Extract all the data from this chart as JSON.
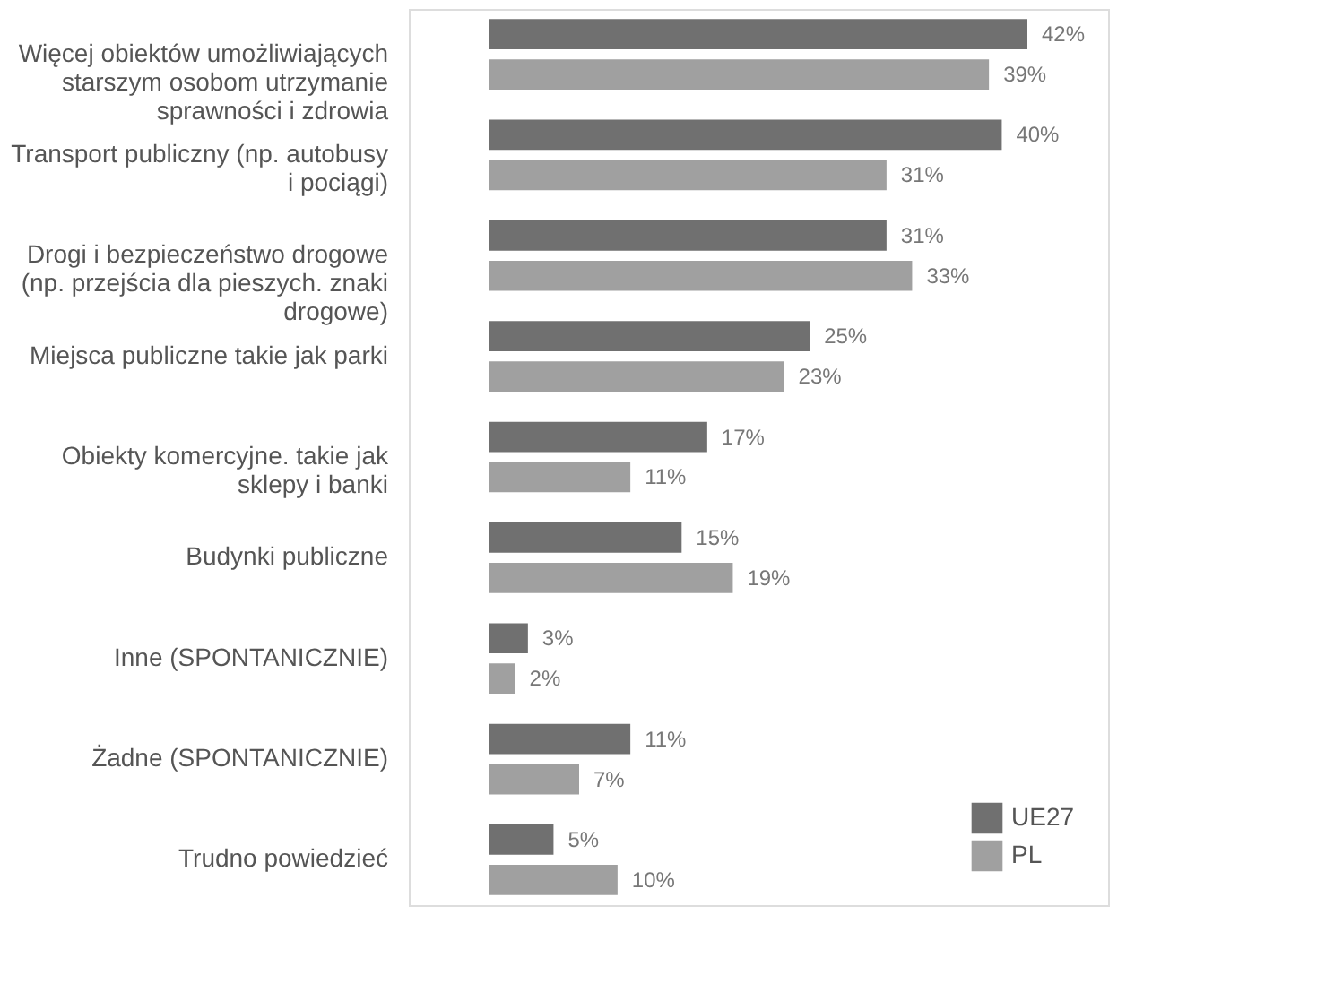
{
  "chart_data": {
    "type": "bar",
    "orientation": "horizontal",
    "legend": "bottom right",
    "grid": false,
    "categories": [
      "Więcej obiektów umożliwiających starszym osobom utrzymanie sprawności i zdrowia",
      "Transport publiczny (np. autobusy i pociągi)",
      "Drogi i bezpieczeństwo drogowe (np. przejścia dla pieszych. znaki drogowe)",
      "Miejsca publiczne takie jak parki",
      "Obiekty komercyjne. takie jak sklepy i banki",
      "Budynki publiczne",
      "Inne (SPONTANICZNIE)",
      "Żadne (SPONTANICZNIE)",
      "Trudno powiedzieć"
    ],
    "series": [
      {
        "name": "UE27",
        "color": "#707070",
        "values": [
          42,
          40,
          31,
          25,
          17,
          15,
          3,
          11,
          5
        ],
        "value_labels": [
          "42%",
          "40%",
          "31%",
          "25%",
          "17%",
          "15%",
          "3%",
          "11%",
          "5%"
        ]
      },
      {
        "name": "PL",
        "color": "#a0a0a0",
        "values": [
          39,
          31,
          33,
          23,
          11,
          19,
          2,
          7,
          10
        ],
        "value_labels": [
          "39%",
          "31%",
          "33%",
          "23%",
          "11%",
          "19%",
          "2%",
          "7%",
          "10%"
        ]
      }
    ]
  }
}
